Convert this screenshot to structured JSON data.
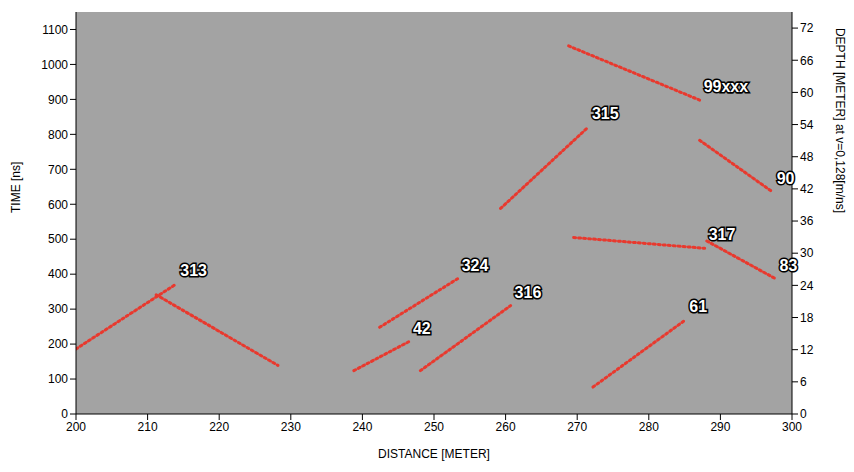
{
  "chart_data": {
    "type": "line",
    "x_label": "DISTANCE [METER]",
    "y_label": "TIME [ns]",
    "y2_label": "DEPTH [METER] at v=0,128[m/ns]",
    "xlim": [
      200,
      300
    ],
    "xticks": [
      200,
      210,
      220,
      230,
      240,
      250,
      260,
      270,
      280,
      290,
      300
    ],
    "ylim": [
      0,
      1150
    ],
    "yticks": [
      0,
      100,
      200,
      300,
      400,
      500,
      600,
      700,
      800,
      900,
      1000,
      1100
    ],
    "y2lim": [
      0,
      75
    ],
    "y2ticks": [
      0,
      6,
      12,
      18,
      24,
      30,
      36,
      42,
      48,
      54,
      60,
      66,
      72
    ],
    "grid": false,
    "color": "#e8392e",
    "line_style": "dotted",
    "series": [
      {
        "name": "313",
        "x": [
          200,
          214
        ],
        "values": [
          186,
          372
        ]
      },
      {
        "x": [
          211.2,
          228.2
        ],
        "values": [
          341,
          139
        ]
      },
      {
        "name": "42",
        "x": [
          238.8,
          246.5
        ],
        "values": [
          124,
          207
        ]
      },
      {
        "name": "324",
        "x": [
          242.4,
          253.3
        ],
        "values": [
          248,
          387
        ]
      },
      {
        "name": "316",
        "x": [
          248.1,
          260.7
        ],
        "values": [
          124,
          310
        ]
      },
      {
        "name": "315",
        "x": [
          259.3,
          271.5
        ],
        "values": [
          588,
          820
        ]
      },
      {
        "name": "99xxx",
        "x": [
          268.8,
          287.1
        ],
        "values": [
          1053,
          898
        ]
      },
      {
        "name": "317",
        "x": [
          269.5,
          287.8
        ],
        "values": [
          505,
          474
        ]
      },
      {
        "name": "61",
        "x": [
          272.2,
          285.1
        ],
        "values": [
          77,
          269
        ]
      },
      {
        "name": "90",
        "x": [
          287.1,
          297.3
        ],
        "values": [
          783,
          635
        ]
      },
      {
        "name": "83",
        "x": [
          288.1,
          297.7
        ],
        "values": [
          495,
          387
        ]
      }
    ]
  }
}
